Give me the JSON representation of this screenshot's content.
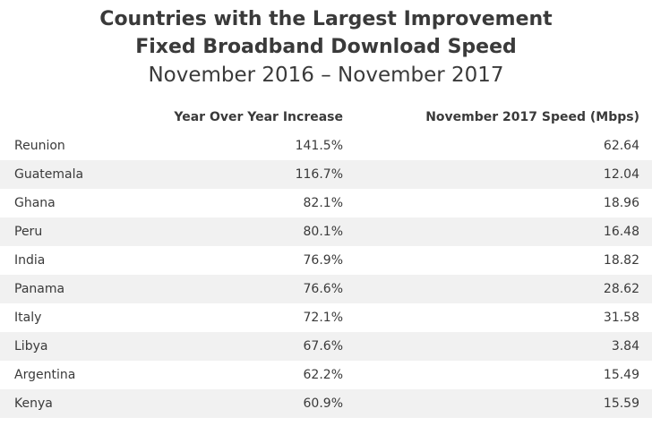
{
  "title": {
    "line1": "Countries with the Largest Improvement",
    "line2": "Fixed Broadband Download Speed",
    "subtitle": "November 2016 – November 2017"
  },
  "chart_data": {
    "type": "table",
    "title": "Countries with the Largest Improvement Fixed Broadband Download Speed",
    "subtitle": "November 2016 – November 2017",
    "columns": [
      "",
      "Year Over Year Increase",
      "November 2017 Speed (Mbps)"
    ],
    "rows": [
      {
        "country": "Reunion",
        "yoy": "141.5%",
        "speed": "62.64"
      },
      {
        "country": "Guatemala",
        "yoy": "116.7%",
        "speed": "12.04"
      },
      {
        "country": "Ghana",
        "yoy": "82.1%",
        "speed": "18.96"
      },
      {
        "country": "Peru",
        "yoy": "80.1%",
        "speed": "16.48"
      },
      {
        "country": "India",
        "yoy": "76.9%",
        "speed": "18.82"
      },
      {
        "country": "Panama",
        "yoy": "76.6%",
        "speed": "28.62"
      },
      {
        "country": "Italy",
        "yoy": "72.1%",
        "speed": "31.58"
      },
      {
        "country": "Libya",
        "yoy": "67.6%",
        "speed": "3.84"
      },
      {
        "country": "Argentina",
        "yoy": "62.2%",
        "speed": "15.49"
      },
      {
        "country": "Kenya",
        "yoy": "60.9%",
        "speed": "15.59"
      }
    ]
  },
  "colors": {
    "text": "#3a3a3a",
    "stripe": "#f1f1f1",
    "background": "#ffffff"
  }
}
